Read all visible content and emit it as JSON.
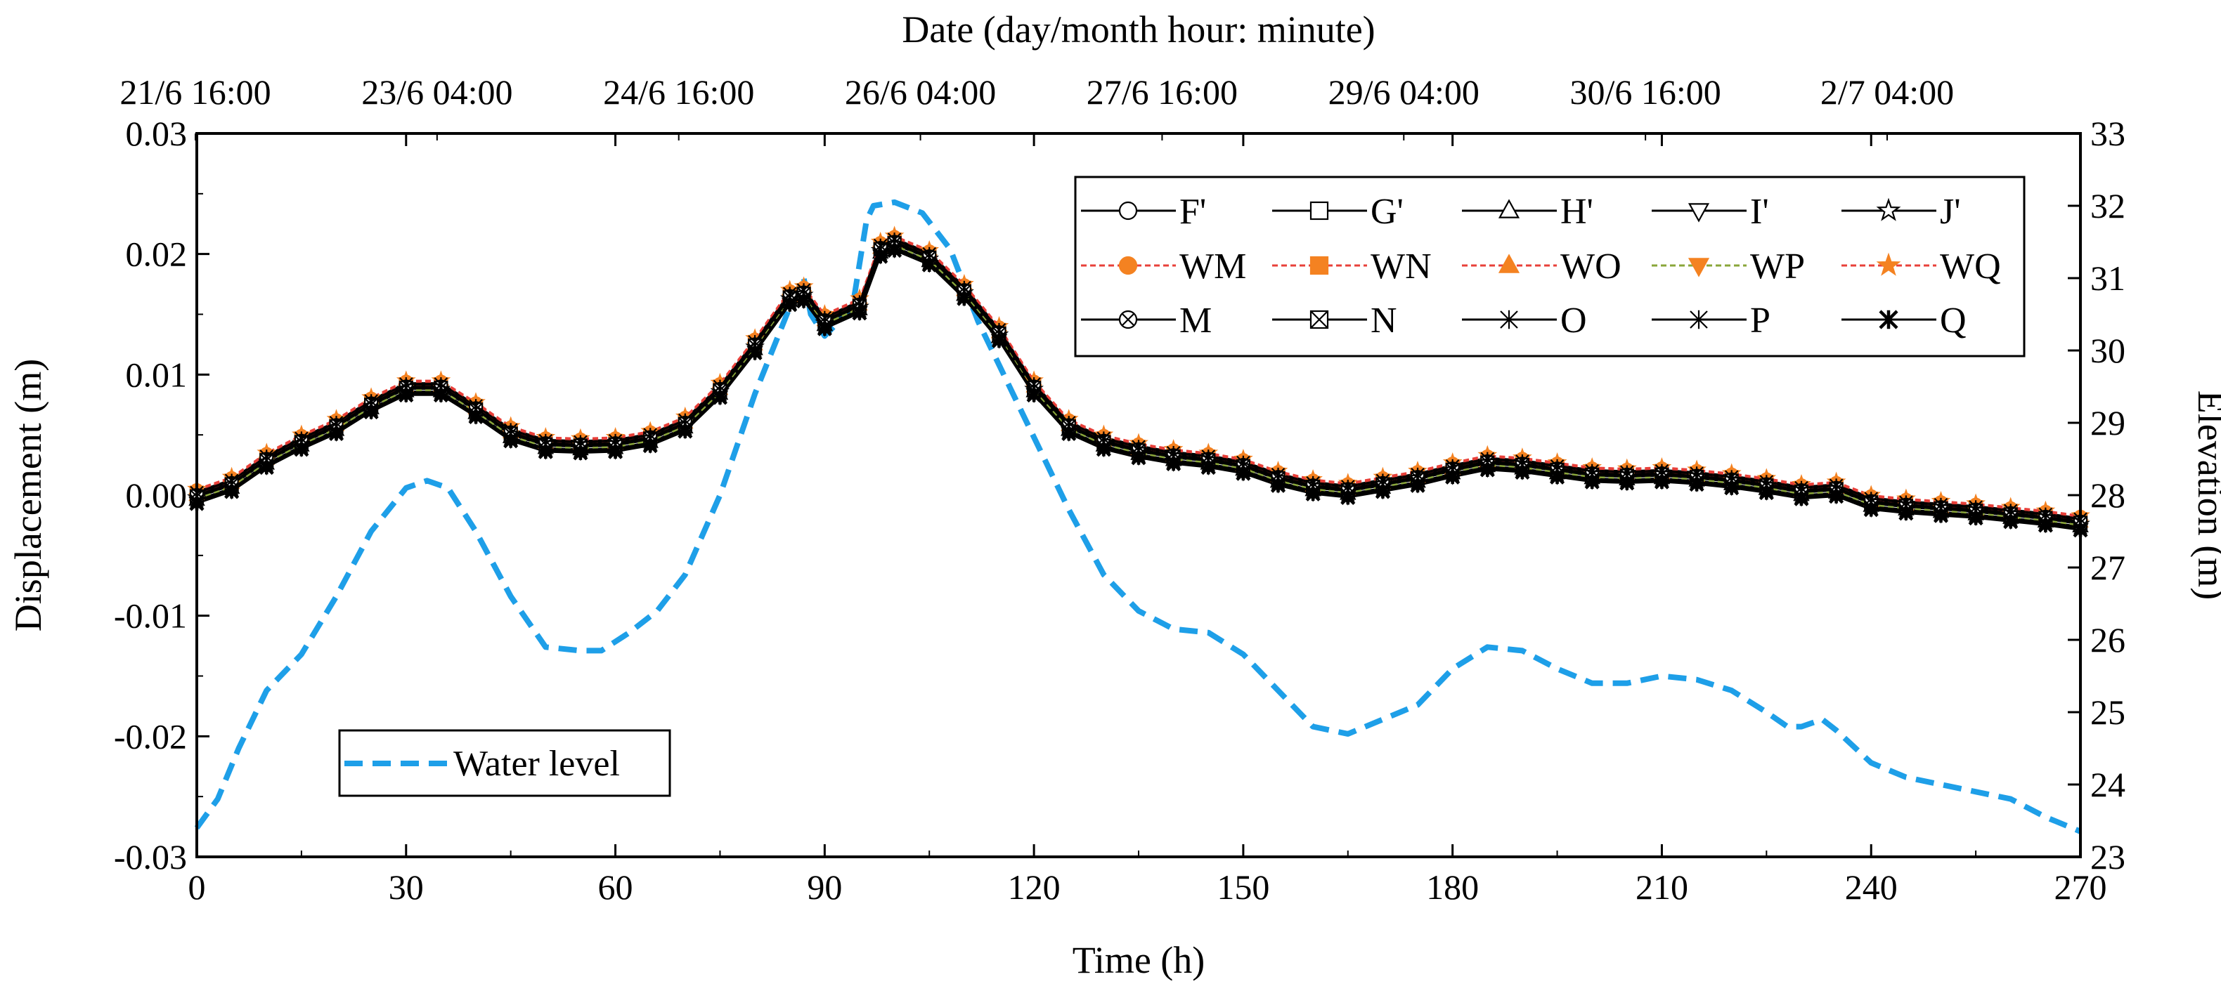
{
  "chart_data": {
    "type": "line",
    "xlabel": "Time (h)",
    "ylabel_left": "Displacement (m)",
    "ylabel_right": "Elevation (m)",
    "top_axis_title": "Date (day/month hour: minute)",
    "xlim": [
      0,
      270
    ],
    "ylim_left": [
      -0.03,
      0.03
    ],
    "ylim_right": [
      23,
      33
    ],
    "x_ticks": [
      0,
      30,
      60,
      90,
      120,
      150,
      180,
      210,
      240,
      270
    ],
    "y_ticks_left": [
      "-0.03",
      "-0.02",
      "-0.01",
      "0.00",
      "0.01",
      "0.02",
      "0.03"
    ],
    "y_ticks_right": [
      "23",
      "24",
      "25",
      "26",
      "27",
      "28",
      "29",
      "30",
      "31",
      "32",
      "33"
    ],
    "top_ticks": [
      "21/6 16:00",
      "23/6 04:00",
      "24/6 16:00",
      "26/6 04:00",
      "27/6 16:00",
      "29/6 04:00",
      "30/6 16:00",
      "2/7 04:00"
    ],
    "x": [
      0,
      5,
      10,
      15,
      20,
      25,
      30,
      35,
      40,
      45,
      50,
      55,
      60,
      65,
      70,
      75,
      80,
      85,
      87,
      90,
      95,
      98,
      100,
      105,
      110,
      115,
      120,
      125,
      130,
      135,
      140,
      145,
      150,
      155,
      160,
      165,
      170,
      175,
      180,
      185,
      190,
      195,
      200,
      205,
      210,
      215,
      220,
      225,
      230,
      235,
      240,
      245,
      250,
      255,
      260,
      265,
      270
    ],
    "displacement_base": [
      0.0,
      0.001,
      0.003,
      0.0045,
      0.0058,
      0.0076,
      0.009,
      0.009,
      0.0072,
      0.0052,
      0.0043,
      0.0042,
      0.0043,
      0.0048,
      0.006,
      0.0088,
      0.0125,
      0.0165,
      0.0168,
      0.0145,
      0.0158,
      0.0205,
      0.021,
      0.0198,
      0.017,
      0.0135,
      0.009,
      0.0058,
      0.0045,
      0.0038,
      0.0033,
      0.003,
      0.0025,
      0.0015,
      0.0008,
      0.0005,
      0.001,
      0.0015,
      0.0022,
      0.0028,
      0.0026,
      0.0022,
      0.0018,
      0.0017,
      0.0018,
      0.0016,
      0.0013,
      0.0009,
      0.0004,
      0.0006,
      -0.0005,
      -0.0008,
      -0.001,
      -0.0012,
      -0.0015,
      -0.0018,
      -0.0022
    ],
    "series": [
      {
        "name": "F'",
        "marker": "circle-open",
        "color": "#000000",
        "style": "solid",
        "offset": 0.0003
      },
      {
        "name": "G'",
        "marker": "square-open",
        "color": "#000000",
        "style": "solid",
        "offset": 0.0001
      },
      {
        "name": "H'",
        "marker": "triangle-up-open",
        "color": "#000000",
        "style": "solid",
        "offset": -0.0004
      },
      {
        "name": "I'",
        "marker": "triangle-down-open",
        "color": "#000000",
        "style": "solid",
        "offset": -0.0006
      },
      {
        "name": "J'",
        "marker": "star-open",
        "color": "#000000",
        "style": "solid",
        "offset": -0.0002
      },
      {
        "name": "WM",
        "marker": "circle-filled",
        "color": "#F48221",
        "line_color": "#E8403A",
        "style": "dashed",
        "offset": 0.0004
      },
      {
        "name": "WN",
        "marker": "square-filled",
        "color": "#F48221",
        "line_color": "#E8403A",
        "style": "dashed",
        "offset": 0.0002
      },
      {
        "name": "WO",
        "marker": "triangle-up-filled",
        "color": "#F48221",
        "line_color": "#E8403A",
        "style": "dashed",
        "offset": 0.0
      },
      {
        "name": "WP",
        "marker": "triangle-down-filled",
        "color": "#F48221",
        "line_color": "#8AA63A",
        "style": "dashed",
        "offset": -0.0003
      },
      {
        "name": "WQ",
        "marker": "star-filled",
        "color": "#F48221",
        "line_color": "#E8403A",
        "style": "dashed",
        "offset": 0.0005
      },
      {
        "name": "M",
        "marker": "circle-x",
        "color": "#000000",
        "style": "solid",
        "offset": 0.0
      },
      {
        "name": "N",
        "marker": "square-x",
        "color": "#000000",
        "style": "solid",
        "offset": -0.0001
      },
      {
        "name": "O",
        "marker": "asterisk-x",
        "color": "#000000",
        "style": "solid",
        "offset": 0.0002
      },
      {
        "name": "P",
        "marker": "asterisk-x",
        "color": "#000000",
        "style": "solid",
        "offset": -0.0005
      },
      {
        "name": "Q",
        "marker": "asterisk-bold",
        "color": "#000000",
        "style": "solid",
        "offset": -0.0007
      }
    ],
    "water_level": {
      "name": "Water level",
      "color": "#1E9FE8",
      "style": "dashed",
      "x": [
        0,
        3,
        6,
        10,
        15,
        20,
        25,
        30,
        33,
        36,
        40,
        45,
        50,
        55,
        58,
        62,
        66,
        70,
        75,
        80,
        85,
        87,
        88,
        90,
        92,
        94,
        96,
        97,
        100,
        104,
        108,
        112,
        116,
        120,
        125,
        130,
        135,
        140,
        145,
        150,
        155,
        160,
        165,
        170,
        175,
        180,
        185,
        190,
        195,
        200,
        205,
        210,
        215,
        220,
        225,
        228,
        230,
        233,
        235,
        240,
        245,
        255,
        260,
        265,
        270
      ],
      "y": [
        23.4,
        23.8,
        24.5,
        25.3,
        25.8,
        26.6,
        27.5,
        28.1,
        28.2,
        28.1,
        27.5,
        26.6,
        25.9,
        25.85,
        25.85,
        26.1,
        26.4,
        26.9,
        28.0,
        29.4,
        30.6,
        31.0,
        30.5,
        30.2,
        30.4,
        30.6,
        31.8,
        32.0,
        32.05,
        31.9,
        31.4,
        30.4,
        29.6,
        28.8,
        27.8,
        26.9,
        26.4,
        26.15,
        26.1,
        25.8,
        25.3,
        24.8,
        24.7,
        24.9,
        25.1,
        25.6,
        25.9,
        25.85,
        25.6,
        25.4,
        25.4,
        25.5,
        25.45,
        25.3,
        25.0,
        24.8,
        24.8,
        24.9,
        24.75,
        24.3,
        24.1,
        23.9,
        23.8,
        23.55,
        23.35
      ]
    },
    "legend_main": "top-right",
    "legend_water": "bottom-left"
  }
}
